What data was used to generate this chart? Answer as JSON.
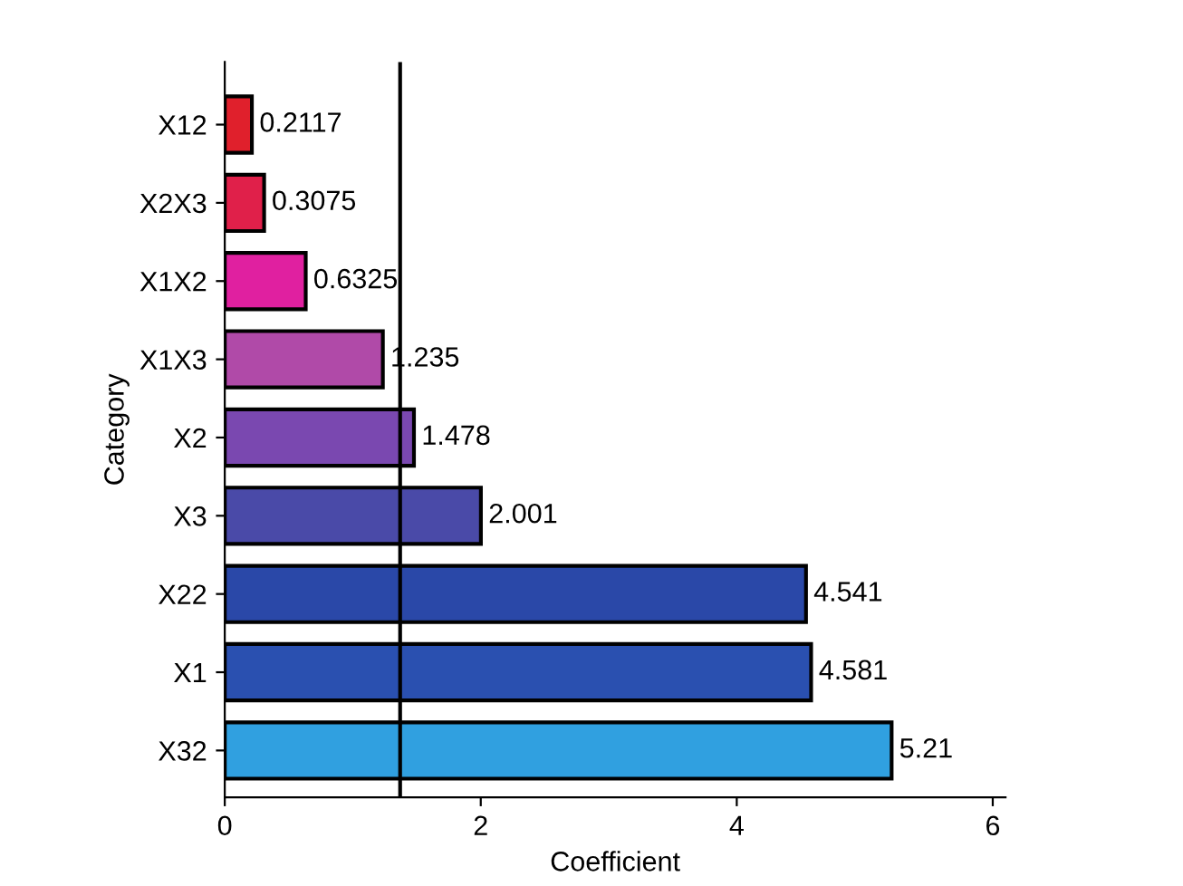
{
  "chart_data": {
    "type": "bar",
    "orientation": "horizontal",
    "xlabel": "Coefficient",
    "ylabel": "Category",
    "categories": [
      "X12",
      "X2X3",
      "X1X2",
      "X1X3",
      "X2",
      "X3",
      "X22",
      "X1",
      "X32"
    ],
    "values": [
      0.2117,
      0.3075,
      0.6325,
      1.235,
      1.478,
      2.001,
      4.541,
      4.581,
      5.21
    ],
    "colors": [
      "#e0202c",
      "#e0204a",
      "#e020a0",
      "#b04aa8",
      "#7a48b0",
      "#4a4aa8",
      "#2a48a8",
      "#2a50b0",
      "#30a0e0"
    ],
    "data_labels": true,
    "xlim": [
      0,
      6.1
    ],
    "xticks": [
      0,
      2,
      4,
      6
    ],
    "ref_lines": [
      {
        "axis": "x",
        "value": 1.37,
        "color": "#000000",
        "line_style": "solid"
      }
    ],
    "grid": false,
    "legend": false
  }
}
